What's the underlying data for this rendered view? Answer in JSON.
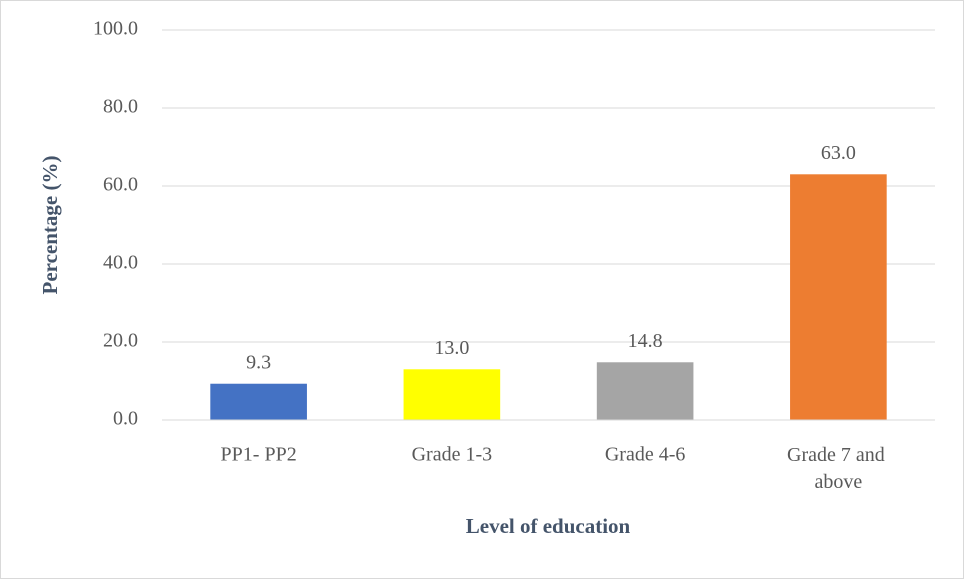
{
  "chart_data": {
    "type": "bar",
    "x_label": "Level of education",
    "y_label": "Percentage (%)",
    "categories": [
      "PP1- PP2",
      "Grade 1-3",
      "Grade 4-6",
      "Grade 7 and above"
    ],
    "values": [
      9.3,
      13,
      14.8,
      63
    ],
    "value_labels": [
      "9.3",
      "13.0",
      "14.8",
      "63.0"
    ],
    "colors": [
      "#4472c4",
      "#ffff00",
      "#a5a5a5",
      "#ed7d31"
    ],
    "ylim": [
      0,
      100
    ],
    "yticks": [
      {
        "value": 0,
        "label": "0.0"
      },
      {
        "value": 20,
        "label": "20.0"
      },
      {
        "value": 40,
        "label": "40.0"
      },
      {
        "value": 60,
        "label": "60.0"
      },
      {
        "value": 80,
        "label": "80.0"
      },
      {
        "value": 100,
        "label": "100.0"
      }
    ],
    "grid": true
  }
}
